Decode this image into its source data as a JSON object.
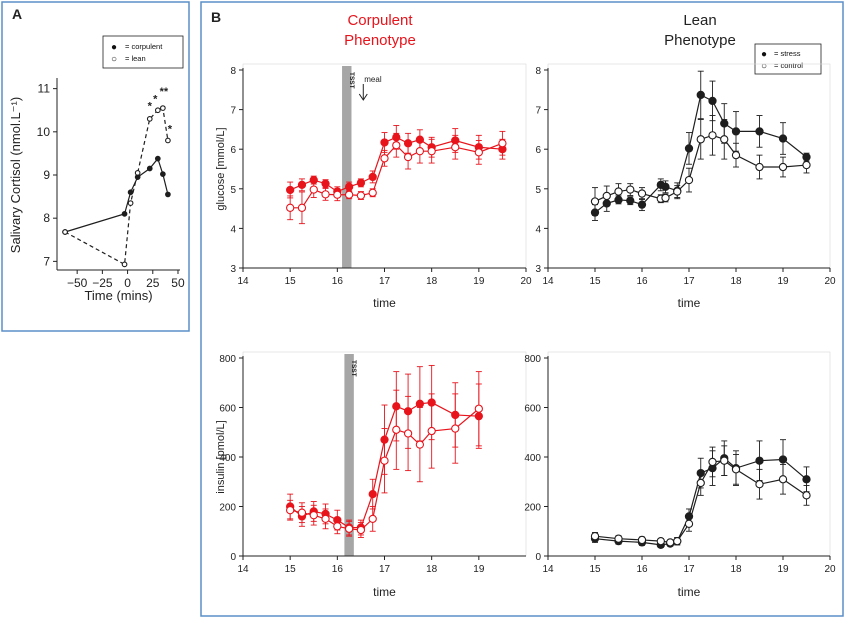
{
  "panelA": {
    "letter": "A",
    "legend": [
      {
        "symbol": "●",
        "label": "= corpulent"
      },
      {
        "symbol": "○",
        "label": "= lean"
      }
    ]
  },
  "panelB": {
    "letter": "B",
    "corpulent_title": [
      "Corpulent",
      "Phenotype"
    ],
    "lean_title": [
      "Lean",
      "Phenotype"
    ],
    "legend": [
      {
        "symbol": "●",
        "label": "= stress"
      },
      {
        "symbol": "○",
        "label": "= control"
      }
    ],
    "tsst_label": "TSST",
    "meal_label": "meal"
  },
  "colors": {
    "corpulent": "#e8141c",
    "lean": "#1e1e1e",
    "tsst_bar": "#a6a6a6",
    "frame": "#5b8fc7"
  },
  "chart_data": [
    {
      "id": "cortisol",
      "type": "line",
      "xlabel": "Time (mins)",
      "ylabel": "Salivary Cortisol (nmol.L⁻¹)",
      "xlim": [
        -70,
        52
      ],
      "ylim": [
        6.8,
        11.2
      ],
      "xticks": [
        -50,
        -25,
        0,
        25,
        50
      ],
      "xticklabels": [
        "−50",
        "−25",
        "0",
        "25",
        "50"
      ],
      "yticks": [
        7,
        8,
        9,
        10,
        11
      ],
      "series": [
        {
          "name": "corpulent",
          "filled": true,
          "dashed": false,
          "x": [
            -62,
            -3,
            3,
            10,
            22,
            30,
            35,
            40
          ],
          "y": [
            7.68,
            8.1,
            8.6,
            8.95,
            9.15,
            9.38,
            9.02,
            8.55
          ]
        },
        {
          "name": "lean",
          "filled": false,
          "dashed": true,
          "x": [
            -62,
            -3,
            3,
            10,
            22,
            30,
            35,
            40
          ],
          "y": [
            7.68,
            6.93,
            8.35,
            9.05,
            10.3,
            10.5,
            10.55,
            9.8
          ]
        }
      ],
      "annotations": [
        {
          "text": "*",
          "x": 22,
          "y": 10.52
        },
        {
          "text": "*",
          "x": 27.5,
          "y": 10.68
        },
        {
          "text": "**",
          "x": 36,
          "y": 10.85
        },
        {
          "text": "*",
          "x": 42,
          "y": 9.98
        }
      ]
    },
    {
      "id": "glucose_corpulent",
      "type": "line",
      "xlabel": "time",
      "ylabel": "glucose [mmol/L]",
      "xlim": [
        14,
        20
      ],
      "ylim": [
        3,
        8
      ],
      "xticks": [
        14,
        15,
        16,
        17,
        18,
        19,
        20
      ],
      "yticks": [
        3,
        4,
        5,
        6,
        7,
        8
      ],
      "tsst": [
        16.1,
        16.3
      ],
      "meal_at": 16.55,
      "series": [
        {
          "name": "stress",
          "filled": true,
          "x": [
            15,
            15.25,
            15.5,
            15.75,
            16,
            16.25,
            16.5,
            16.75,
            17,
            17.25,
            17.5,
            17.75,
            18,
            18.5,
            19,
            19.5
          ],
          "y": [
            4.97,
            5.1,
            5.22,
            5.13,
            4.93,
            5.05,
            5.15,
            5.3,
            6.17,
            6.3,
            6.15,
            6.24,
            6.05,
            6.22,
            6.05,
            6.0
          ],
          "err": [
            0.2,
            0.15,
            0.1,
            0.1,
            0.12,
            0.12,
            0.1,
            0.15,
            0.25,
            0.3,
            0.25,
            0.25,
            0.25,
            0.3,
            0.3,
            0.25
          ]
        },
        {
          "name": "control",
          "filled": false,
          "x": [
            15,
            15.25,
            15.5,
            15.75,
            16,
            16.25,
            16.5,
            16.75,
            17,
            17.25,
            17.5,
            17.75,
            18,
            18.5,
            19,
            19.5
          ],
          "y": [
            4.52,
            4.52,
            4.98,
            4.86,
            4.85,
            4.85,
            4.83,
            4.9,
            5.77,
            6.1,
            5.8,
            5.95,
            5.95,
            6.05,
            5.92,
            6.15
          ],
          "err": [
            0.3,
            0.4,
            0.2,
            0.15,
            0.15,
            0.1,
            0.1,
            0.1,
            0.2,
            0.3,
            0.3,
            0.3,
            0.3,
            0.3,
            0.3,
            0.3
          ]
        }
      ]
    },
    {
      "id": "glucose_lean",
      "type": "line",
      "xlabel": "time",
      "ylabel": "",
      "xlim": [
        14,
        20
      ],
      "ylim": [
        3,
        8
      ],
      "xticks": [
        14,
        15,
        16,
        17,
        18,
        19,
        20
      ],
      "yticks": [
        3,
        4,
        5,
        6,
        7,
        8
      ],
      "series": [
        {
          "name": "stress",
          "filled": true,
          "x": [
            15,
            15.25,
            15.5,
            15.75,
            16,
            16.4,
            16.5,
            16.75,
            17,
            17.25,
            17.5,
            17.75,
            18,
            18.5,
            19,
            19.5
          ],
          "y": [
            4.4,
            4.63,
            4.72,
            4.7,
            4.6,
            5.1,
            5.05,
            4.95,
            6.02,
            7.37,
            7.22,
            6.65,
            6.45,
            6.45,
            6.27,
            5.8
          ],
          "err": [
            0.2,
            0.2,
            0.1,
            0.1,
            0.15,
            0.15,
            0.15,
            0.2,
            0.4,
            0.6,
            0.5,
            0.5,
            0.5,
            0.4,
            0.4,
            0.1
          ]
        },
        {
          "name": "control",
          "filled": false,
          "x": [
            15,
            15.25,
            15.5,
            15.75,
            16,
            16.4,
            16.5,
            16.75,
            17,
            17.25,
            17.5,
            17.75,
            18,
            18.5,
            19,
            19.5
          ],
          "y": [
            4.68,
            4.82,
            4.93,
            4.98,
            4.88,
            4.75,
            4.77,
            4.93,
            5.22,
            6.25,
            6.35,
            6.25,
            5.85,
            5.55,
            5.55,
            5.6
          ],
          "err": [
            0.35,
            0.25,
            0.2,
            0.15,
            0.15,
            0.1,
            0.1,
            0.15,
            0.3,
            0.5,
            0.5,
            0.5,
            0.3,
            0.3,
            0.25,
            0.2
          ]
        }
      ]
    },
    {
      "id": "insulin_corpulent",
      "type": "line",
      "xlabel": "time",
      "ylabel": "insulin [pmol/L]",
      "xlim": [
        14,
        20
      ],
      "ylim": [
        0,
        800
      ],
      "xticks": [
        14,
        15,
        16,
        17,
        18,
        19
      ],
      "yticks": [
        0,
        200,
        400,
        600,
        800
      ],
      "tsst": [
        16.15,
        16.35
      ],
      "series": [
        {
          "name": "stress",
          "filled": true,
          "x": [
            15,
            15.25,
            15.5,
            15.75,
            16,
            16.25,
            16.5,
            16.75,
            17,
            17.25,
            17.5,
            17.75,
            18,
            18.5,
            19
          ],
          "y": [
            200,
            160,
            180,
            170,
            145,
            115,
            115,
            250,
            470,
            605,
            585,
            615,
            620,
            570,
            565
          ],
          "err": [
            50,
            40,
            40,
            40,
            40,
            30,
            30,
            60,
            140,
            140,
            150,
            150,
            150,
            130,
            130
          ]
        },
        {
          "name": "control",
          "filled": false,
          "x": [
            15,
            15.25,
            15.5,
            15.75,
            16,
            16.25,
            16.5,
            16.75,
            17,
            17.25,
            17.5,
            17.75,
            18,
            18.5,
            19
          ],
          "y": [
            185,
            175,
            165,
            150,
            120,
            110,
            105,
            150,
            385,
            510,
            495,
            450,
            505,
            515,
            595
          ],
          "err": [
            40,
            40,
            40,
            40,
            30,
            30,
            30,
            50,
            130,
            160,
            150,
            150,
            150,
            140,
            150
          ]
        }
      ]
    },
    {
      "id": "insulin_lean",
      "type": "line",
      "xlabel": "time",
      "ylabel": "",
      "xlim": [
        14,
        20
      ],
      "ylim": [
        0,
        800
      ],
      "xticks": [
        14,
        15,
        16,
        17,
        18,
        19,
        20
      ],
      "yticks": [
        0,
        200,
        400,
        600,
        800
      ],
      "series": [
        {
          "name": "stress",
          "filled": true,
          "x": [
            15,
            15.5,
            16,
            16.4,
            16.6,
            16.75,
            17,
            17.25,
            17.5,
            17.75,
            18,
            18.5,
            19,
            19.5
          ],
          "y": [
            70,
            60,
            55,
            45,
            50,
            60,
            160,
            335,
            355,
            395,
            355,
            385,
            390,
            310
          ],
          "err": [
            15,
            12,
            12,
            10,
            10,
            15,
            30,
            60,
            70,
            70,
            70,
            80,
            80,
            50
          ]
        },
        {
          "name": "control",
          "filled": false,
          "x": [
            15,
            15.5,
            16,
            16.4,
            16.6,
            16.75,
            17,
            17.25,
            17.5,
            17.75,
            18,
            18.5,
            19,
            19.5
          ],
          "y": [
            80,
            70,
            65,
            60,
            55,
            60,
            130,
            295,
            380,
            385,
            350,
            290,
            310,
            245
          ],
          "err": [
            15,
            12,
            12,
            10,
            10,
            15,
            30,
            50,
            60,
            60,
            60,
            60,
            60,
            40
          ]
        }
      ]
    }
  ]
}
